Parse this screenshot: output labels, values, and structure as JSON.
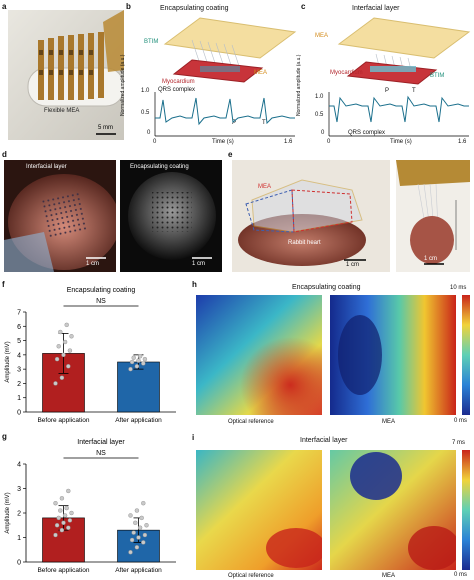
{
  "panels": {
    "a": {
      "letter": "a",
      "label": "Flexible MEA",
      "scale": "5 mm"
    },
    "b": {
      "letter": "b",
      "title": "Encapsulating coating",
      "layers": {
        "btim": "BTIM",
        "mea": "MEA",
        "myocardium": "Myocardium"
      },
      "trace": {
        "qrs": "QRS complex",
        "p": "P",
        "t": "T",
        "ylabel": "Normalized amplitude (a.u.)",
        "xlabel": "Time (s)",
        "yticks": [
          "1.0",
          "0.5",
          "0"
        ],
        "xticks": [
          "0",
          "1.6"
        ]
      }
    },
    "c": {
      "letter": "c",
      "title": "Interfacial layer",
      "layers": {
        "mea": "MEA",
        "myocardium": "Myocardium",
        "btim": "BTIM"
      },
      "trace": {
        "qrs": "QRS complex",
        "p": "P",
        "t": "T",
        "ylabel": "Normalized amplitude (a.u.)",
        "xlabel": "Time (s)",
        "yticks": [
          "1.0",
          "0.5",
          "0"
        ],
        "xticks": [
          "0",
          "1.6"
        ]
      }
    },
    "d": {
      "letter": "d",
      "left_label": "Interfacial layer",
      "left_scale": "1 cm",
      "right_label": "Encapsulating coating",
      "right_scale": "1 cm"
    },
    "e": {
      "letter": "e",
      "mea": "MEA",
      "heart": "Rabbit heart",
      "scale1": "1 cm",
      "scale2": "1 cm"
    },
    "f": {
      "letter": "f"
    },
    "g": {
      "letter": "g"
    },
    "h": {
      "letter": "h",
      "title": "Encapsulating coating",
      "left": "Optical reference",
      "right": "MEA",
      "cmax": "10 ms",
      "cmin": "0 ms"
    },
    "i": {
      "letter": "i",
      "title": "Interfacial layer",
      "left": "Optical reference",
      "right": "MEA",
      "cmax": "7 ms",
      "cmin": "0 ms"
    }
  },
  "chart_data": [
    {
      "type": "bar",
      "id": "f",
      "title": "Encapsulating coating",
      "categories": [
        "Before application",
        "After application"
      ],
      "values": [
        4.1,
        3.5
      ],
      "errors": [
        1.4,
        0.5
      ],
      "ylabel": "Amplitude (mV)",
      "ylim": [
        0,
        7
      ],
      "yticks": [
        "0",
        "1",
        "2",
        "3",
        "4",
        "5",
        "6",
        "7"
      ],
      "significance": "NS",
      "colors": [
        "#b11f1f",
        "#1f66a8"
      ],
      "points": [
        [
          2.0,
          2.4,
          3.2,
          3.7,
          4.0,
          4.3,
          4.6,
          4.9,
          5.3,
          5.6,
          6.1
        ],
        [
          3.0,
          3.2,
          3.4,
          3.5,
          3.6,
          3.7,
          3.8,
          3.9
        ]
      ]
    },
    {
      "type": "bar",
      "id": "g",
      "title": "Interfacial layer",
      "categories": [
        "Before application",
        "After application"
      ],
      "values": [
        1.8,
        1.3
      ],
      "errors": [
        0.5,
        0.5
      ],
      "ylabel": "Amplitude (mV)",
      "ylim": [
        0,
        4
      ],
      "yticks": [
        "0",
        "1",
        "2",
        "3",
        "4"
      ],
      "significance": "NS",
      "colors": [
        "#b11f1f",
        "#1f66a8"
      ],
      "points": [
        [
          1.1,
          1.3,
          1.4,
          1.5,
          1.6,
          1.7,
          1.8,
          1.9,
          2.0,
          2.1,
          2.2,
          2.4,
          2.6,
          2.9
        ],
        [
          0.4,
          0.6,
          0.8,
          0.9,
          1.0,
          1.1,
          1.2,
          1.4,
          1.5,
          1.6,
          1.8,
          1.9,
          2.1,
          2.4
        ]
      ]
    }
  ]
}
